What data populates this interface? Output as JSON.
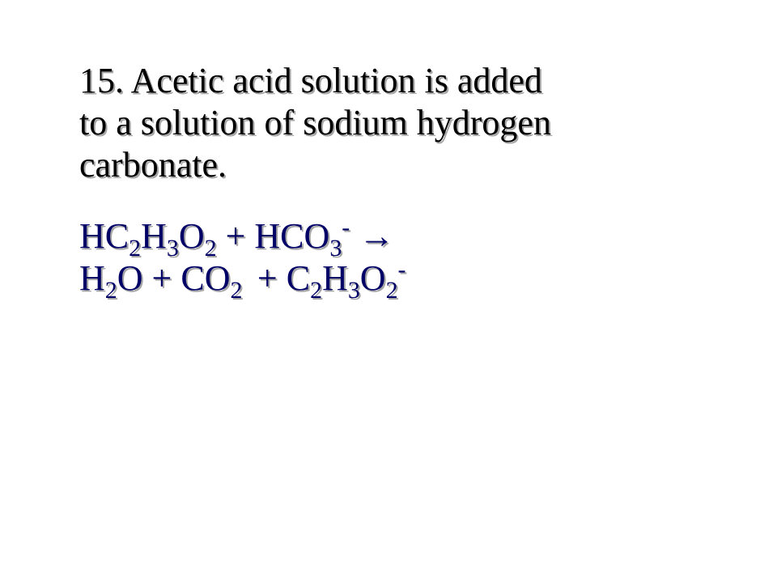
{
  "slide": {
    "background_color": "#ffffff",
    "font_family": "Times New Roman",
    "question": {
      "number": "15.",
      "text_line1": "15.  Acetic acid solution is added",
      "text_line2": "to a solution of sodium hydrogen",
      "text_line3": "carbonate.",
      "color": "#000000",
      "fontsize_pt": 33,
      "shadow_color": "#969696"
    },
    "equation": {
      "color": "#000066",
      "fontsize_pt": 33,
      "shadow_color": "#969696",
      "reactants": [
        {
          "formula": "HC2H3O2",
          "display": "HC₂H₃O₂"
        },
        {
          "formula": "HCO3-",
          "display": "HCO₃⁻"
        }
      ],
      "arrow": "→",
      "products": [
        {
          "formula": "H2O",
          "display": "H₂O"
        },
        {
          "formula": "CO2",
          "display": "CO₂"
        },
        {
          "formula": "C2H3O2-",
          "display": "C₂H₃O₂⁻"
        }
      ],
      "tokens": {
        "r1_H": "H",
        "r1_C": "C",
        "r1_2a": "2",
        "r1_Hb": "H",
        "r1_3": "3",
        "r1_O": "O",
        "r1_2b": "2",
        "plus1": " + ",
        "r2_H": "H",
        "r2_C": "C",
        "r2_O": "O",
        "r2_3": "3",
        "r2_minus": "-",
        "arrow_glyph": " →",
        "p1_H": "H",
        "p1_2": "2",
        "p1_O": "O",
        "plus2": " + ",
        "p2_C": "C",
        "p2_O": "O",
        "p2_2": "2",
        "plus3": " + ",
        "p3_C": "C",
        "p3_2a": "2",
        "p3_H": "H",
        "p3_3": "3",
        "p3_O": "O",
        "p3_2b": "2",
        "p3_minus": "-"
      }
    }
  }
}
